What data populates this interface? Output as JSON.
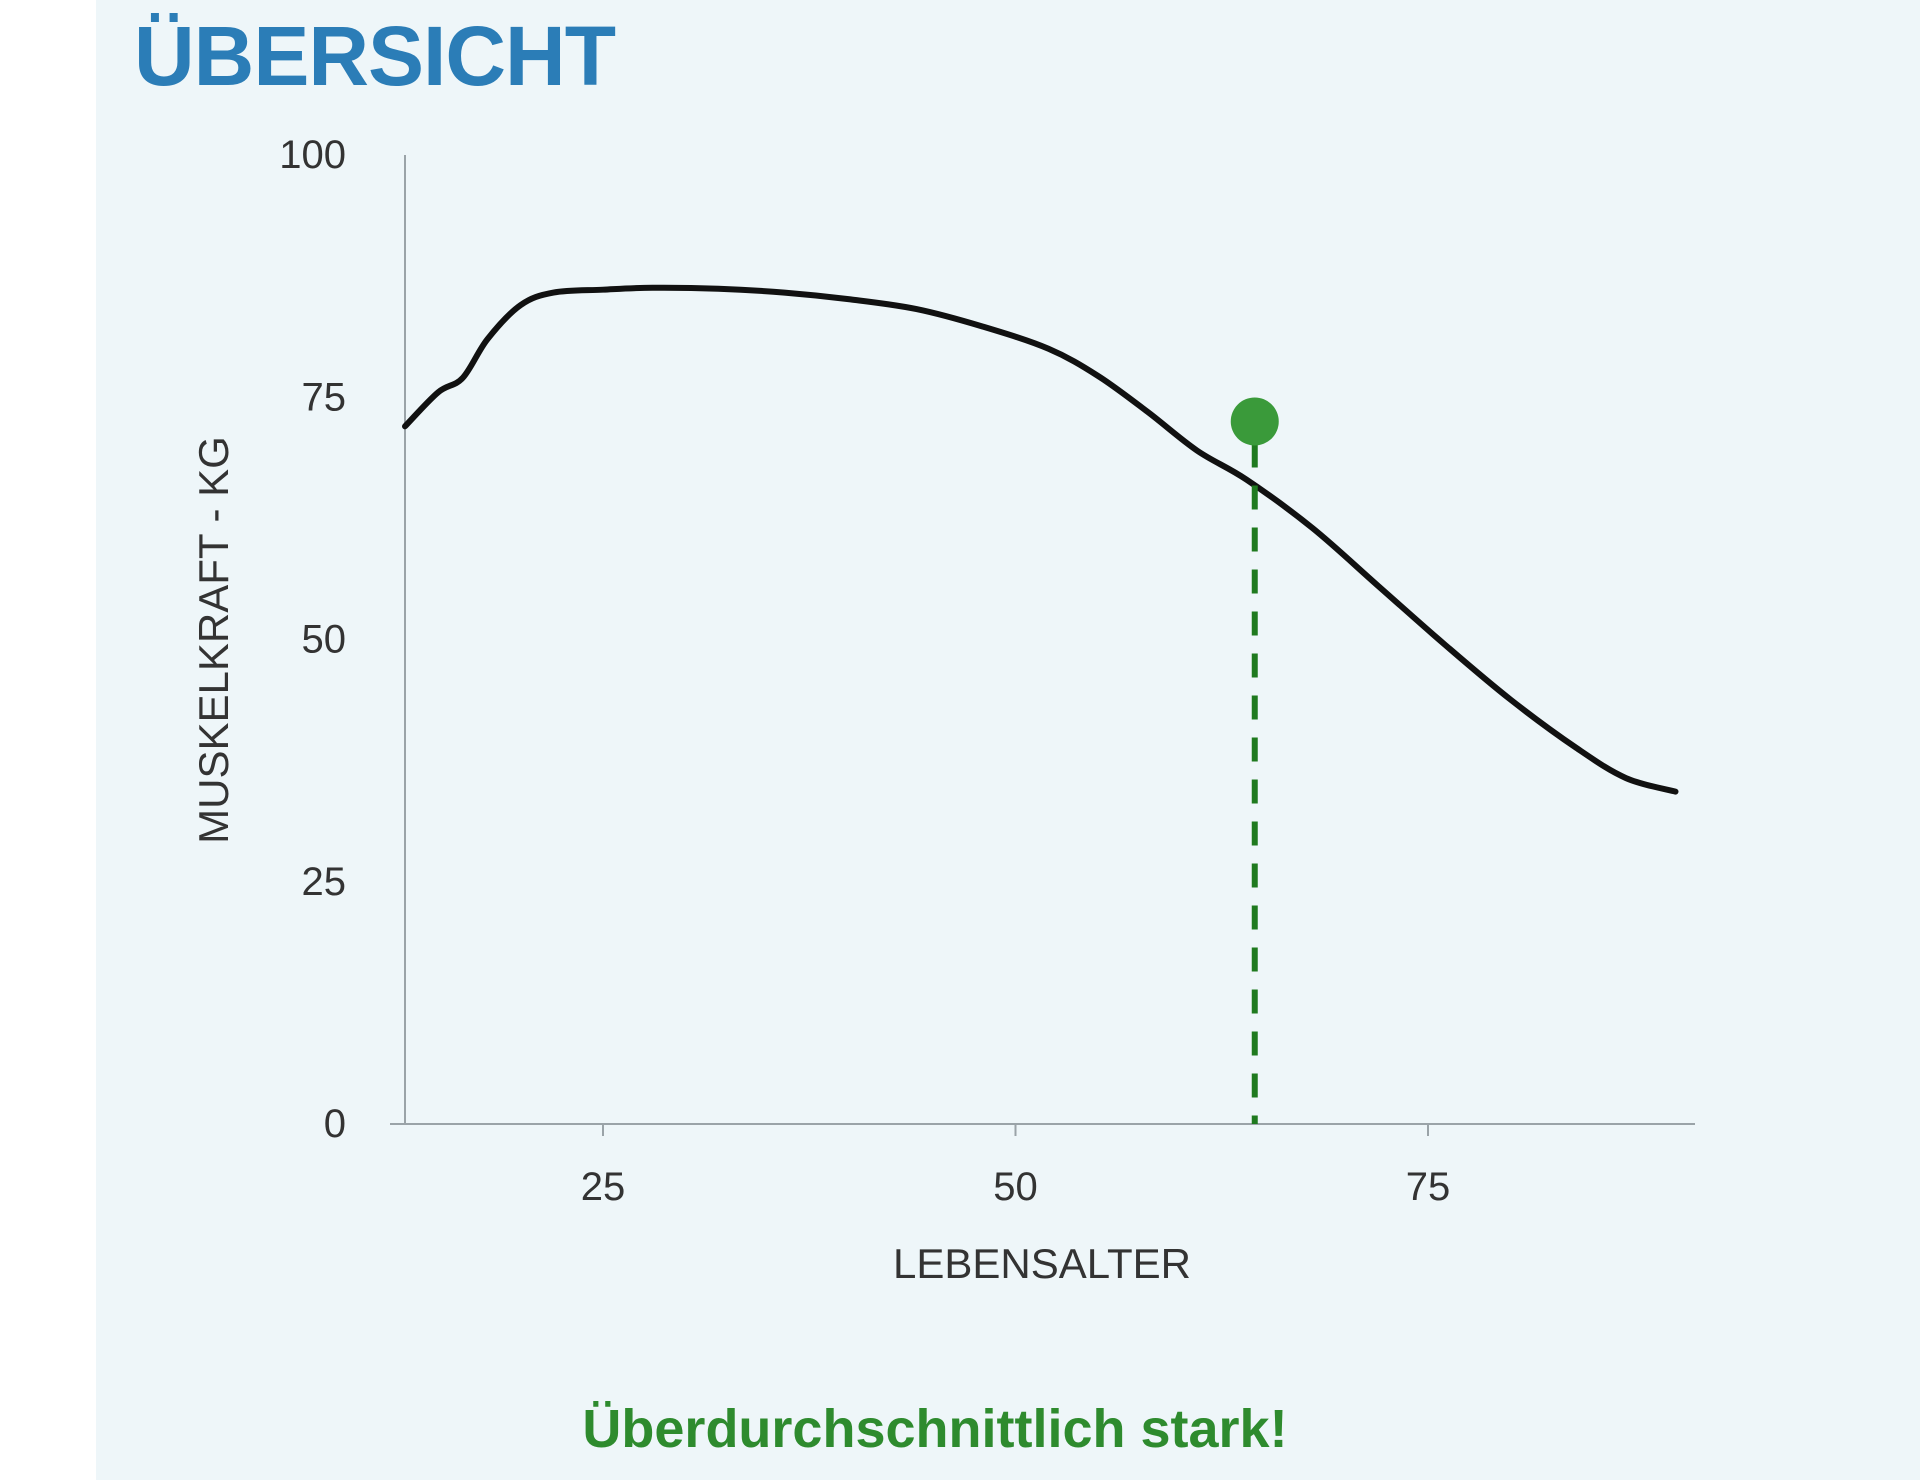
{
  "header": {
    "title": "ÜBERSICHT"
  },
  "result": {
    "text": "Überdurchschnittlich stark!",
    "color": "#2e8b2e"
  },
  "chart_data": {
    "type": "line",
    "xlabel": "LEBENSALTER",
    "ylabel": "MUSKELKRAFT - KG",
    "xlim": [
      13,
      91
    ],
    "ylim": [
      0,
      100
    ],
    "xticks": [
      25,
      50,
      75
    ],
    "yticks": [
      0,
      25,
      50,
      75,
      100
    ],
    "grid": false,
    "series": [
      {
        "color": "#111111",
        "x": [
          13,
          15,
          16.5,
          18,
          20,
          22,
          25,
          28,
          32,
          36,
          40,
          44,
          48,
          52,
          55,
          58,
          61,
          64,
          68,
          72,
          76,
          80,
          84,
          87,
          90
        ],
        "y": [
          72,
          75.5,
          77,
          81,
          84.5,
          85.8,
          86.1,
          86.3,
          86.2,
          85.8,
          85.1,
          84.1,
          82.3,
          80,
          77.2,
          73.5,
          69.5,
          66.5,
          61.5,
          55.5,
          49.5,
          43.8,
          38.8,
          35.7,
          34.3
        ]
      }
    ],
    "marker": {
      "x": 64.5,
      "y": 72.5,
      "color": "#3a9a3a",
      "dashed_line_color": "#1f7a1f"
    }
  }
}
